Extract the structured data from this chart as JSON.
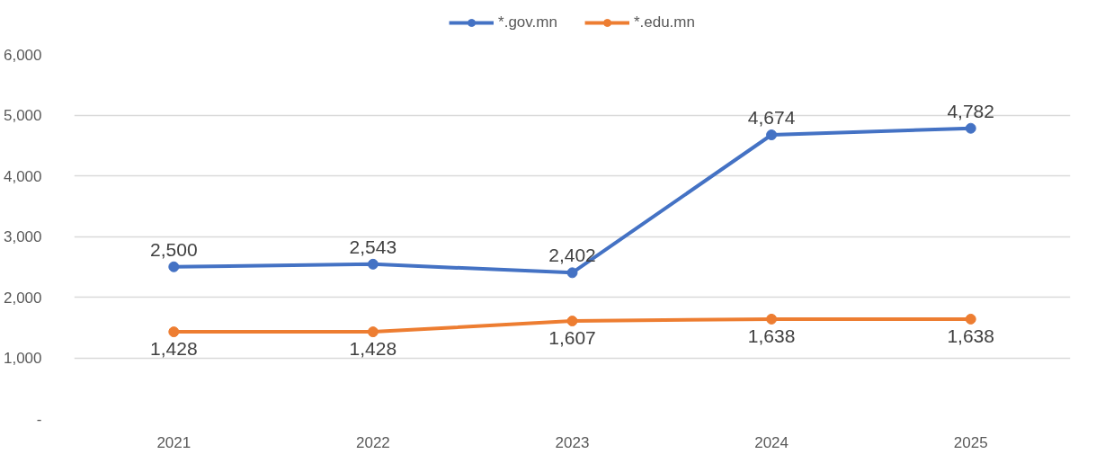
{
  "chart_data": {
    "type": "line",
    "categories": [
      "2021",
      "2022",
      "2023",
      "2024",
      "2025"
    ],
    "series": [
      {
        "name": "*.gov.mn",
        "color": "#4472c4",
        "values": [
          2500,
          2543,
          2402,
          4674,
          4782
        ],
        "value_labels": [
          "2,500",
          "2,543",
          "2,402",
          "4,674",
          "4,782"
        ]
      },
      {
        "name": "*.edu.mn",
        "color": "#ed7d31",
        "values": [
          1428,
          1428,
          1607,
          1638,
          1638
        ],
        "value_labels": [
          "1,428",
          "1,428",
          "1,607",
          "1,638",
          "1,638"
        ]
      }
    ],
    "ylim": [
      0,
      6000
    ],
    "yticks": [
      {
        "value": 0,
        "label": "-"
      },
      {
        "value": 1000,
        "label": "1,000"
      },
      {
        "value": 2000,
        "label": "2,000"
      },
      {
        "value": 3000,
        "label": "3,000"
      },
      {
        "value": 4000,
        "label": "4,000"
      },
      {
        "value": 5000,
        "label": "5,000"
      },
      {
        "value": 6000,
        "label": "6,000"
      }
    ],
    "grid": "y",
    "legend": "top",
    "marker": "circle",
    "line_style": "solid"
  }
}
